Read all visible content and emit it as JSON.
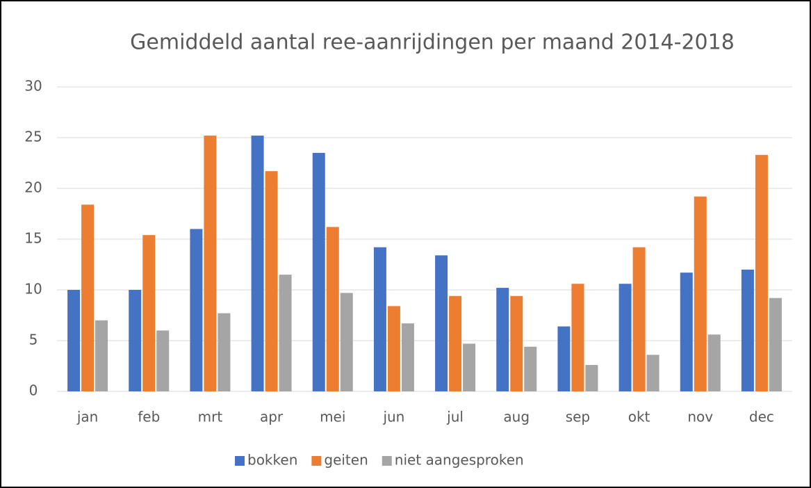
{
  "chart_data": {
    "type": "bar",
    "title": "Gemiddeld aantal ree-aanrijdingen per maand 2014-2018",
    "categories": [
      "jan",
      "feb",
      "mrt",
      "apr",
      "mei",
      "jun",
      "jul",
      "aug",
      "sep",
      "okt",
      "nov",
      "dec"
    ],
    "series": [
      {
        "name": "bokken",
        "color": "#4472c4",
        "values": [
          10,
          10,
          16,
          25.2,
          23.5,
          14.2,
          13.4,
          10.2,
          6.4,
          10.6,
          11.7,
          12
        ]
      },
      {
        "name": "geiten",
        "color": "#ed7d31",
        "values": [
          18.4,
          15.4,
          25.2,
          21.7,
          16.2,
          8.4,
          9.4,
          9.4,
          10.6,
          14.2,
          19.2,
          23.3
        ]
      },
      {
        "name": "niet aangesproken",
        "color": "#a5a5a5",
        "values": [
          7,
          6,
          7.7,
          11.5,
          9.7,
          6.7,
          4.7,
          4.4,
          2.6,
          3.6,
          5.6,
          9.2
        ]
      }
    ],
    "ylim": [
      0,
      30
    ],
    "yticks": [
      0,
      5,
      10,
      15,
      20,
      25,
      30
    ],
    "grid": true,
    "legend": "bottom"
  }
}
